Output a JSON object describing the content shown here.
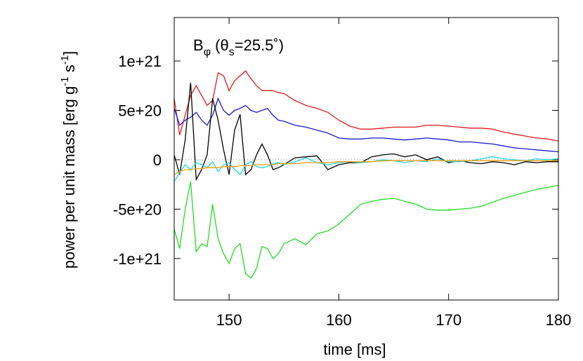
{
  "chart_data": {
    "type": "line",
    "annotation_parts": [
      "B",
      "φ",
      " (θ",
      "s",
      "=25.5˚)"
    ],
    "xlabel": "time [ms]",
    "ylabel_parts": [
      "power per unit mass [erg g",
      "-1",
      " s",
      "-1",
      "]"
    ],
    "x": [
      145,
      145.5,
      146,
      146.5,
      147,
      147.5,
      148,
      148.5,
      149,
      149.5,
      150,
      150.5,
      151,
      151.5,
      152,
      152.5,
      153,
      153.5,
      154,
      154.5,
      155,
      156,
      157,
      158,
      159,
      160,
      161,
      162,
      163,
      164,
      165,
      166,
      167,
      168,
      169,
      170,
      171,
      172,
      173,
      174,
      175,
      176,
      177,
      178,
      179,
      180
    ],
    "series": [
      {
        "color": "#e41a1c",
        "values": [
          6.2e+20,
          2.5e+20,
          4.5e+20,
          6.5e+20,
          7.5e+20,
          6.5e+20,
          5.5e+20,
          6e+20,
          8.8e+20,
          8.5e+20,
          7e+20,
          8e+20,
          8.5e+20,
          9e+20,
          8.2e+20,
          7.5e+20,
          7e+20,
          7e+20,
          7e+20,
          6.8e+20,
          6.7e+20,
          6e+20,
          5.5e+20,
          5.2e+20,
          4.8e+20,
          4e+20,
          3.4e+20,
          3.1e+20,
          3.1e+20,
          3.2e+20,
          3.3e+20,
          3.3e+20,
          3.3e+20,
          3.5e+20,
          3.5e+20,
          3.4e+20,
          3.3e+20,
          3.2e+20,
          3.2e+20,
          3.1e+20,
          2.8e+20,
          2.6e+20,
          2.4e+20,
          2.2e+20,
          2.1e+20,
          1.9e+20
        ]
      },
      {
        "color": "#1a1acc",
        "values": [
          5.2e+20,
          3.5e+20,
          4e+20,
          4.3e+20,
          4.8e+20,
          4e+20,
          3.5e+20,
          4.5e+20,
          6.2e+20,
          5e+20,
          4.5e+20,
          5e+20,
          5.2e+20,
          5.5e+20,
          5e+20,
          4.8e+20,
          5e+20,
          5.2e+20,
          4.5e+20,
          4e+20,
          3.9e+20,
          3.5e+20,
          3.3e+20,
          3e+20,
          2.7e+20,
          2.2e+20,
          2.1e+20,
          2.1e+20,
          2.2e+20,
          2.2e+20,
          2.1e+20,
          2e+20,
          2.1e+20,
          2.2e+20,
          2.1e+20,
          2e+20,
          1.8e+20,
          1.8e+20,
          1.7e+20,
          1.6e+20,
          1.4e+20,
          1.2e+20,
          1.1e+20,
          1e+20,
          9e+19,
          8e+19
        ]
      },
      {
        "color": "#000000",
        "values": [
          5e+19,
          -1.5e+20,
          2e+20,
          7.8e+20,
          -2e+20,
          -1e+20,
          5e+19,
          6.2e+20,
          4e+20,
          1e+20,
          -1.5e+20,
          3e+20,
          4.6e+20,
          -1.5e+20,
          -1e+20,
          5e+19,
          1.6e+20,
          5e+19,
          -1e+20,
          -8e+19,
          -5e+19,
          2e+19,
          3e+19,
          4e+19,
          -1e+20,
          -5e+19,
          -3e+19,
          -3e+19,
          3e+19,
          5e+19,
          6e+19,
          3e+19,
          5e+19,
          0,
          3e+19,
          -3e+19,
          -1e+19,
          -3e+19,
          -4e+19,
          -2e+19,
          -3e+19,
          -5e+19,
          -2e+19,
          -3e+19,
          -2e+19,
          -2e+19
        ]
      },
      {
        "color": "#22d8e8",
        "values": [
          -2.2e+20,
          -1.3e+20,
          -5e+19,
          -1e+20,
          -3e+19,
          -5e+19,
          -8e+19,
          -2e+19,
          -1.2e+20,
          -5e+19,
          -3e+19,
          -1e+20,
          -1.5e+20,
          -5e+19,
          -2e+19,
          -7e+19,
          -8e+19,
          -7e+19,
          -4e+19,
          -3e+19,
          -5e+19,
          -2e+19,
          2e+19,
          -3e+19,
          -5e+19,
          -3e+19,
          -2e+19,
          -3e+19,
          -2e+19,
          0,
          -1e+19,
          -3e+19,
          -1e+19,
          -2e+19,
          1e+19,
          -2e+19,
          -2e+19,
          -1e+19,
          1e+19,
          3e+19,
          1e+19,
          0,
          -1e+19,
          1e+19,
          0,
          1e+19
        ]
      },
      {
        "color": "#f0a010",
        "values": [
          -1.5e+20,
          -1.2e+20,
          -1e+20,
          -1e+20,
          -9e+19,
          -9e+19,
          -8e+19,
          -8e+19,
          -8e+19,
          -7e+19,
          -7e+19,
          -7e+19,
          -6e+19,
          -6e+19,
          -6e+19,
          -5e+19,
          -5e+19,
          -5e+19,
          -5e+19,
          -4e+19,
          -4e+19,
          -4e+19,
          -3e+19,
          -3e+19,
          -3e+19,
          -2e+19,
          -2e+19,
          -2e+19,
          -2e+19,
          -1e+19,
          -1e+19,
          -1e+19,
          -1e+19,
          -1e+19,
          -1e+19,
          -1e+19,
          -1e+19,
          -1e+19,
          -1e+19,
          -1e+19,
          -1e+19,
          -1e+19,
          -1e+19,
          -1e+19,
          -1e+19,
          -1e+19
        ]
      },
      {
        "color": "#22dd22",
        "values": [
          -7e+20,
          -9e+20,
          -5e+20,
          -2.2e+20,
          -9.3e+20,
          -8.5e+20,
          -8.8e+20,
          -4.5e+20,
          -8e+20,
          -9.5e+20,
          -1.05e+21,
          -9e+20,
          -8.5e+20,
          -1.15e+21,
          -1.2e+21,
          -1.1e+21,
          -8.8e+20,
          -9e+20,
          -1e+21,
          -9.5e+20,
          -8.5e+20,
          -8e+20,
          -8.6e+20,
          -7.5e+20,
          -7.2e+20,
          -6.5e+20,
          -5.5e+20,
          -4.5e+20,
          -4.2e+20,
          -4e+20,
          -3.9e+20,
          -4.2e+20,
          -4.5e+20,
          -5e+20,
          -5.1e+20,
          -5.1e+20,
          -5e+20,
          -4.9e+20,
          -4.7e+20,
          -4.3e+20,
          -3.9e+20,
          -3.6e+20,
          -3.3e+20,
          -3e+20,
          -2.8e+20,
          -2.6e+20
        ]
      }
    ],
    "xlim": [
      145,
      180
    ],
    "xticks": [
      150,
      160,
      170,
      180
    ],
    "ylim": [
      -1.42e+21,
      1.44e+21
    ],
    "yticks": [
      {
        "value": -1e+21,
        "label": "-1e+21"
      },
      {
        "value": -5e+20,
        "label": "-5e+20"
      },
      0,
      {
        "value": 5e+20,
        "label": "5e+20"
      },
      {
        "value": 1e+21,
        "label": "1e+21"
      }
    ],
    "zero_line": true
  }
}
